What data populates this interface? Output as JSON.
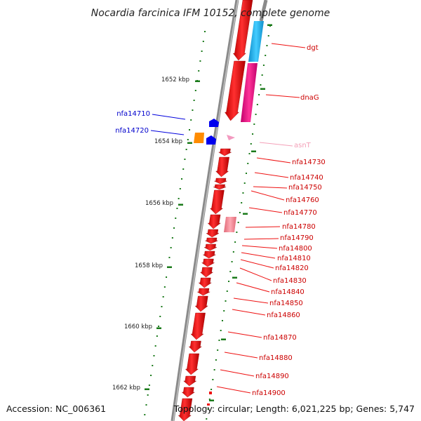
{
  "title": "Nocardia farcinica IFM 10152, complete genome",
  "footer": {
    "accession": "Accession: NC_006361",
    "topology": "Topology: circular; Length: 6,021,225 bp; Genes: 5,747"
  },
  "kbp_labels": [
    "1652 kbp",
    "1654 kbp",
    "1656 kbp",
    "1658 kbp",
    "1660 kbp",
    "1662 kbp"
  ],
  "colors": {
    "backbone": "#8a8a8a",
    "gene_red": "#ee1111",
    "cyan": "#22bbee",
    "magenta": "#ee1188",
    "pink_label": "#f4a0b8",
    "blue": "#0000dd",
    "orange": "#ff8c00",
    "tick_green": "#1a7a1a"
  },
  "genes_right": [
    {
      "name": "dgt",
      "color": "#cc0000"
    },
    {
      "name": "dnaG",
      "color": "#cc0000"
    },
    {
      "name": "asnT",
      "color": "#f4a0b8"
    },
    {
      "name": "nfa14730",
      "color": "#cc0000"
    },
    {
      "name": "nfa14740",
      "color": "#cc0000"
    },
    {
      "name": "nfa14750",
      "color": "#cc0000"
    },
    {
      "name": "nfa14760",
      "color": "#cc0000"
    },
    {
      "name": "nfa14770",
      "color": "#cc0000"
    },
    {
      "name": "nfa14780",
      "color": "#cc0000"
    },
    {
      "name": "nfa14790",
      "color": "#cc0000"
    },
    {
      "name": "nfa14800",
      "color": "#cc0000"
    },
    {
      "name": "nfa14810",
      "color": "#cc0000"
    },
    {
      "name": "nfa14820",
      "color": "#cc0000"
    },
    {
      "name": "nfa14830",
      "color": "#cc0000"
    },
    {
      "name": "nfa14840",
      "color": "#cc0000"
    },
    {
      "name": "nfa14850",
      "color": "#cc0000"
    },
    {
      "name": "nfa14860",
      "color": "#cc0000"
    },
    {
      "name": "nfa14870",
      "color": "#cc0000"
    },
    {
      "name": "nfa14880",
      "color": "#cc0000"
    },
    {
      "name": "nfa14890",
      "color": "#cc0000"
    },
    {
      "name": "nfa14900",
      "color": "#cc0000"
    }
  ],
  "genes_left": [
    {
      "name": "nfa14710",
      "color": "#0000cc"
    },
    {
      "name": "nfa14720",
      "color": "#0000cc"
    }
  ]
}
